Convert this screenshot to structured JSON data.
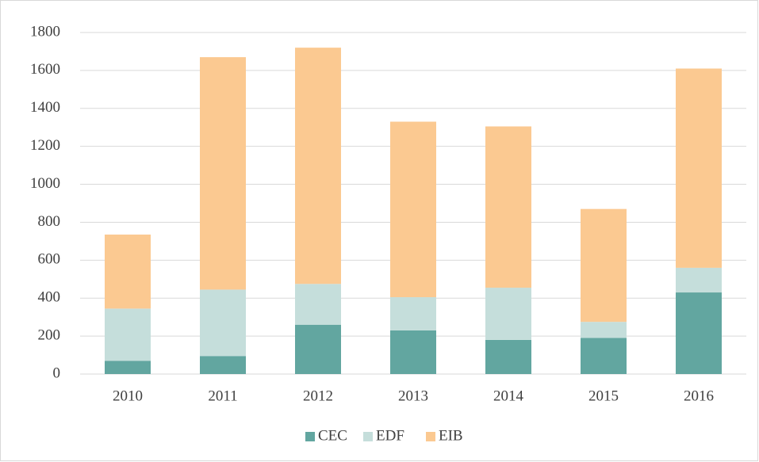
{
  "chart_data": {
    "type": "stacked_bar",
    "categories": [
      "2010",
      "2011",
      "2012",
      "2013",
      "2014",
      "2015",
      "2016"
    ],
    "series": [
      {
        "name": "CEC",
        "color": "#62a6a0",
        "values": [
          70,
          95,
          260,
          230,
          180,
          190,
          430
        ]
      },
      {
        "name": "EDF",
        "color": "#c5dedb",
        "values": [
          275,
          350,
          215,
          175,
          275,
          85,
          130
        ]
      },
      {
        "name": "EIB",
        "color": "#fbc991",
        "values": [
          390,
          1225,
          1245,
          925,
          850,
          595,
          1050
        ]
      }
    ],
    "ylim": [
      0,
      1800
    ],
    "yticks": [
      0,
      200,
      400,
      600,
      800,
      1000,
      1200,
      1400,
      1600,
      1800
    ],
    "grid": true,
    "legend": "bottom"
  }
}
